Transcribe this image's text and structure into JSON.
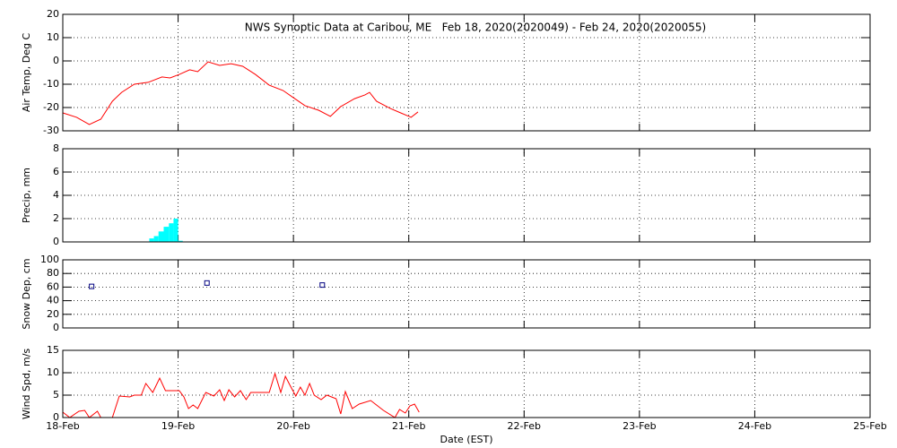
{
  "chart_data": [
    {
      "type": "line",
      "title": "NWS Synoptic Data at Caribou, ME   Feb 18, 2020(2020049) - Feb 24, 2020(2020055)",
      "ylabel": "Air Temp, Deg C",
      "xlim": [
        18,
        25
      ],
      "ylim": [
        -30,
        20
      ],
      "yticks": [
        -30,
        -20,
        -10,
        0,
        10,
        20
      ],
      "grid": true,
      "x": [
        18.0,
        18.12,
        18.23,
        18.33,
        18.43,
        18.51,
        18.62,
        18.74,
        18.86,
        18.93,
        19.01,
        19.1,
        19.17,
        19.26,
        19.36,
        19.46,
        19.56,
        19.67,
        19.79,
        19.91,
        20.0,
        20.1,
        20.22,
        20.32,
        20.41,
        20.53,
        20.62,
        20.66,
        20.72,
        20.84,
        20.93,
        21.02,
        21.08
      ],
      "series": [
        {
          "color": "#ff0000",
          "values": [
            -22.3,
            -24.2,
            -27.3,
            -25,
            -17.3,
            -13.5,
            -10,
            -9.2,
            -6.9,
            -7.3,
            -5.8,
            -3.8,
            -4.6,
            -0.4,
            -1.9,
            -1.2,
            -2.3,
            -5.8,
            -10.4,
            -12.7,
            -15.8,
            -19.2,
            -21.2,
            -23.8,
            -19.6,
            -16.2,
            -14.6,
            -13.5,
            -17.3,
            -20.4,
            -22.3,
            -24.2,
            -21.9
          ]
        }
      ]
    },
    {
      "type": "histogram",
      "ylabel": "Precip, mm",
      "xlim": [
        18,
        25
      ],
      "ylim": [
        0,
        8
      ],
      "yticks": [
        0,
        2,
        4,
        6,
        8
      ],
      "grid": true,
      "bins": [
        18.75,
        18.79,
        18.83,
        18.875,
        18.92,
        18.96,
        19.0,
        19.04
      ],
      "series": [
        {
          "color": "#00ffff",
          "values": [
            0.3,
            0.5,
            0.9,
            1.3,
            1.6,
            2.0,
            0.1
          ]
        }
      ]
    },
    {
      "type": "scatter",
      "ylabel": "Snow Dep, cm",
      "xlim": [
        18,
        25
      ],
      "ylim": [
        0,
        100
      ],
      "yticks": [
        0,
        20,
        40,
        60,
        80,
        100
      ],
      "grid": true,
      "x": [
        18.25,
        19.25,
        20.25
      ],
      "series": [
        {
          "color": "#000080",
          "values": [
            61,
            66,
            63
          ]
        }
      ]
    },
    {
      "type": "line",
      "ylabel": "Wind Spd, m/s",
      "xlabel": "Date (EST)",
      "xlim": [
        18,
        25
      ],
      "ylim": [
        0,
        15
      ],
      "yticks": [
        0,
        5,
        10,
        15
      ],
      "grid": true,
      "xticks": [
        {
          "value": 18,
          "label": "18-Feb"
        },
        {
          "value": 19,
          "label": "19-Feb"
        },
        {
          "value": 20,
          "label": "20-Feb"
        },
        {
          "value": 21,
          "label": "21-Feb"
        },
        {
          "value": 22,
          "label": "22-Feb"
        },
        {
          "value": 23,
          "label": "23-Feb"
        },
        {
          "value": 24,
          "label": "24-Feb"
        },
        {
          "value": 25,
          "label": "25-Feb"
        }
      ],
      "x": [
        18.0,
        18.06,
        18.14,
        18.19,
        18.23,
        18.3,
        18.33,
        18.43,
        18.49,
        18.58,
        18.62,
        18.68,
        18.72,
        18.78,
        18.84,
        18.89,
        19.01,
        19.05,
        19.09,
        19.13,
        19.17,
        19.24,
        19.31,
        19.36,
        19.4,
        19.44,
        19.49,
        19.54,
        19.59,
        19.63,
        19.79,
        19.84,
        19.89,
        19.93,
        19.97,
        20.02,
        20.06,
        20.1,
        20.14,
        20.18,
        20.24,
        20.29,
        20.37,
        20.41,
        20.45,
        20.51,
        20.57,
        20.67,
        20.72,
        20.78,
        20.88,
        20.92,
        20.97,
        21.01,
        21.05,
        21.09
      ],
      "series": [
        {
          "color": "#ff0000",
          "values": [
            1.2,
            0,
            1.4,
            1.6,
            0,
            1.4,
            0,
            0,
            4.8,
            4.6,
            5.0,
            5.0,
            7.6,
            5.6,
            8.8,
            6.0,
            6.0,
            4.6,
            2.0,
            2.8,
            2.0,
            5.6,
            4.8,
            6.2,
            3.8,
            6.2,
            4.6,
            6.0,
            4.0,
            5.6,
            5.6,
            9.8,
            5.6,
            9.2,
            7.2,
            4.8,
            6.8,
            5.0,
            7.6,
            5.0,
            4.0,
            5.0,
            4.2,
            0.8,
            5.8,
            2.0,
            3.0,
            3.8,
            2.8,
            1.6,
            0,
            1.8,
            1.0,
            2.6,
            3.0,
            1.2
          ]
        }
      ]
    }
  ]
}
